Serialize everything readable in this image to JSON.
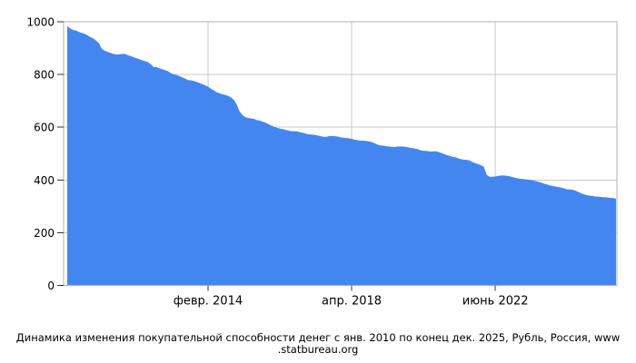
{
  "caption": {
    "line1": "Динамика изменения покупательной способности денег с янв. 2010 по конец дек. 2025, Рубль, Россия, www",
    "line2": ".statbureau.org"
  },
  "chart_data": {
    "type": "area",
    "title": "Динамика изменения покупательной способности денег с янв. 2010 по конец дек. 2025, Рубль, Россия, www.statbureau.org",
    "xlabel": "",
    "ylabel": "",
    "ylim": [
      0,
      1000
    ],
    "y_ticks": [
      0,
      200,
      400,
      600,
      800,
      1000
    ],
    "x_start": "янв. 2010",
    "x_end": "дек. 2025",
    "x_interval": "month",
    "x_ticks": [
      {
        "label": "февр. 2014",
        "month_index": 49
      },
      {
        "label": "апр. 2018",
        "month_index": 99
      },
      {
        "label": "июнь 2022",
        "month_index": 149
      }
    ],
    "grid": true,
    "legend": "none",
    "series_color": "#4486F0",
    "grid_color": "#c8c8c8",
    "border_color": "#b0b0b0",
    "tick_color": "#333333",
    "text_color": "#000000",
    "values": [
      984,
      975,
      969,
      967,
      962,
      958,
      955,
      949,
      942,
      937,
      929,
      919,
      898,
      891,
      886,
      882,
      878,
      876,
      876,
      878,
      878,
      874,
      870,
      866,
      862,
      859,
      854,
      851,
      847,
      840,
      829,
      828,
      824,
      820,
      817,
      813,
      805,
      801,
      798,
      794,
      789,
      785,
      779,
      778,
      776,
      772,
      768,
      764,
      759,
      754,
      746,
      740,
      733,
      729,
      725,
      723,
      719,
      713,
      704,
      686,
      660,
      646,
      638,
      635,
      633,
      632,
      627,
      625,
      621,
      617,
      612,
      607,
      602,
      598,
      595,
      593,
      590,
      588,
      585,
      585,
      584,
      581,
      579,
      576,
      573,
      572,
      571,
      569,
      567,
      564,
      563,
      566,
      567,
      566,
      565,
      562,
      560,
      559,
      558,
      556,
      553,
      551,
      549,
      549,
      548,
      546,
      544,
      539,
      534,
      531,
      530,
      528,
      527,
      526,
      525,
      527,
      527,
      527,
      525,
      523,
      521,
      519,
      517,
      512,
      511,
      510,
      508,
      508,
      509,
      507,
      503,
      499,
      495,
      492,
      488,
      486,
      482,
      479,
      477,
      476,
      474,
      468,
      464,
      460,
      456,
      450,
      419,
      412,
      412,
      413,
      415,
      417,
      417,
      416,
      414,
      411,
      408,
      406,
      404,
      403,
      402,
      400,
      398,
      396,
      393,
      390,
      386,
      383,
      379,
      377,
      375,
      373,
      371,
      368,
      364,
      364,
      362,
      359,
      354,
      349,
      345,
      342,
      340,
      339,
      337,
      337,
      335,
      335,
      334,
      332,
      331,
      329
    ]
  }
}
